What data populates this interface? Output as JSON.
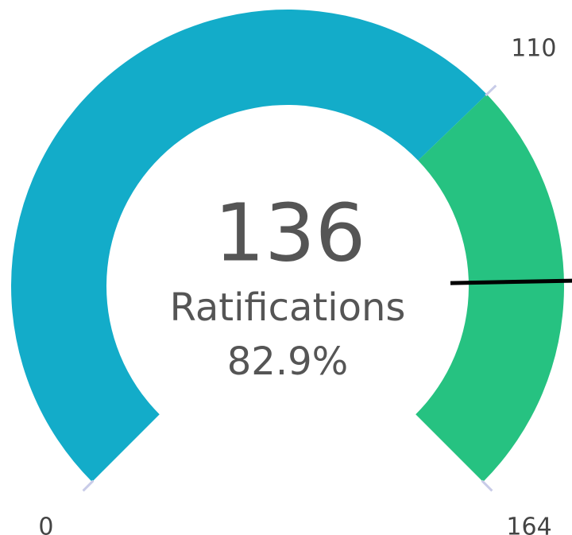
{
  "chart_data": {
    "type": "gauge",
    "value": 136,
    "label": "Ratifications",
    "percent": {
      "value": 82.9,
      "label": "82.9%"
    },
    "ylim": [
      0,
      164
    ],
    "yticks": [
      0,
      110,
      164
    ],
    "bands": [
      {
        "to": 110,
        "color": "#13acc9"
      },
      {
        "to": 164,
        "color": "#26c281"
      }
    ],
    "needle_color": "#000000"
  }
}
